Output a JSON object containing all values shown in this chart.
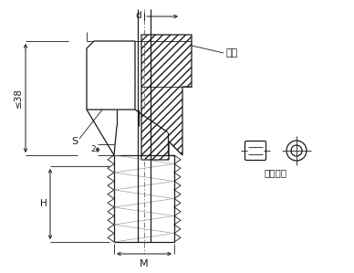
{
  "bg_color": "#ffffff",
  "line_color": "#1a1a1a",
  "figsize": [
    3.88,
    2.99
  ],
  "dpi": 100,
  "labels": {
    "d": "d",
    "s": "S",
    "approx38": "≤38",
    "h": "H",
    "m": "M",
    "two": "2",
    "kasetto": "卡套",
    "movable_kasetto": "可動卡套"
  }
}
